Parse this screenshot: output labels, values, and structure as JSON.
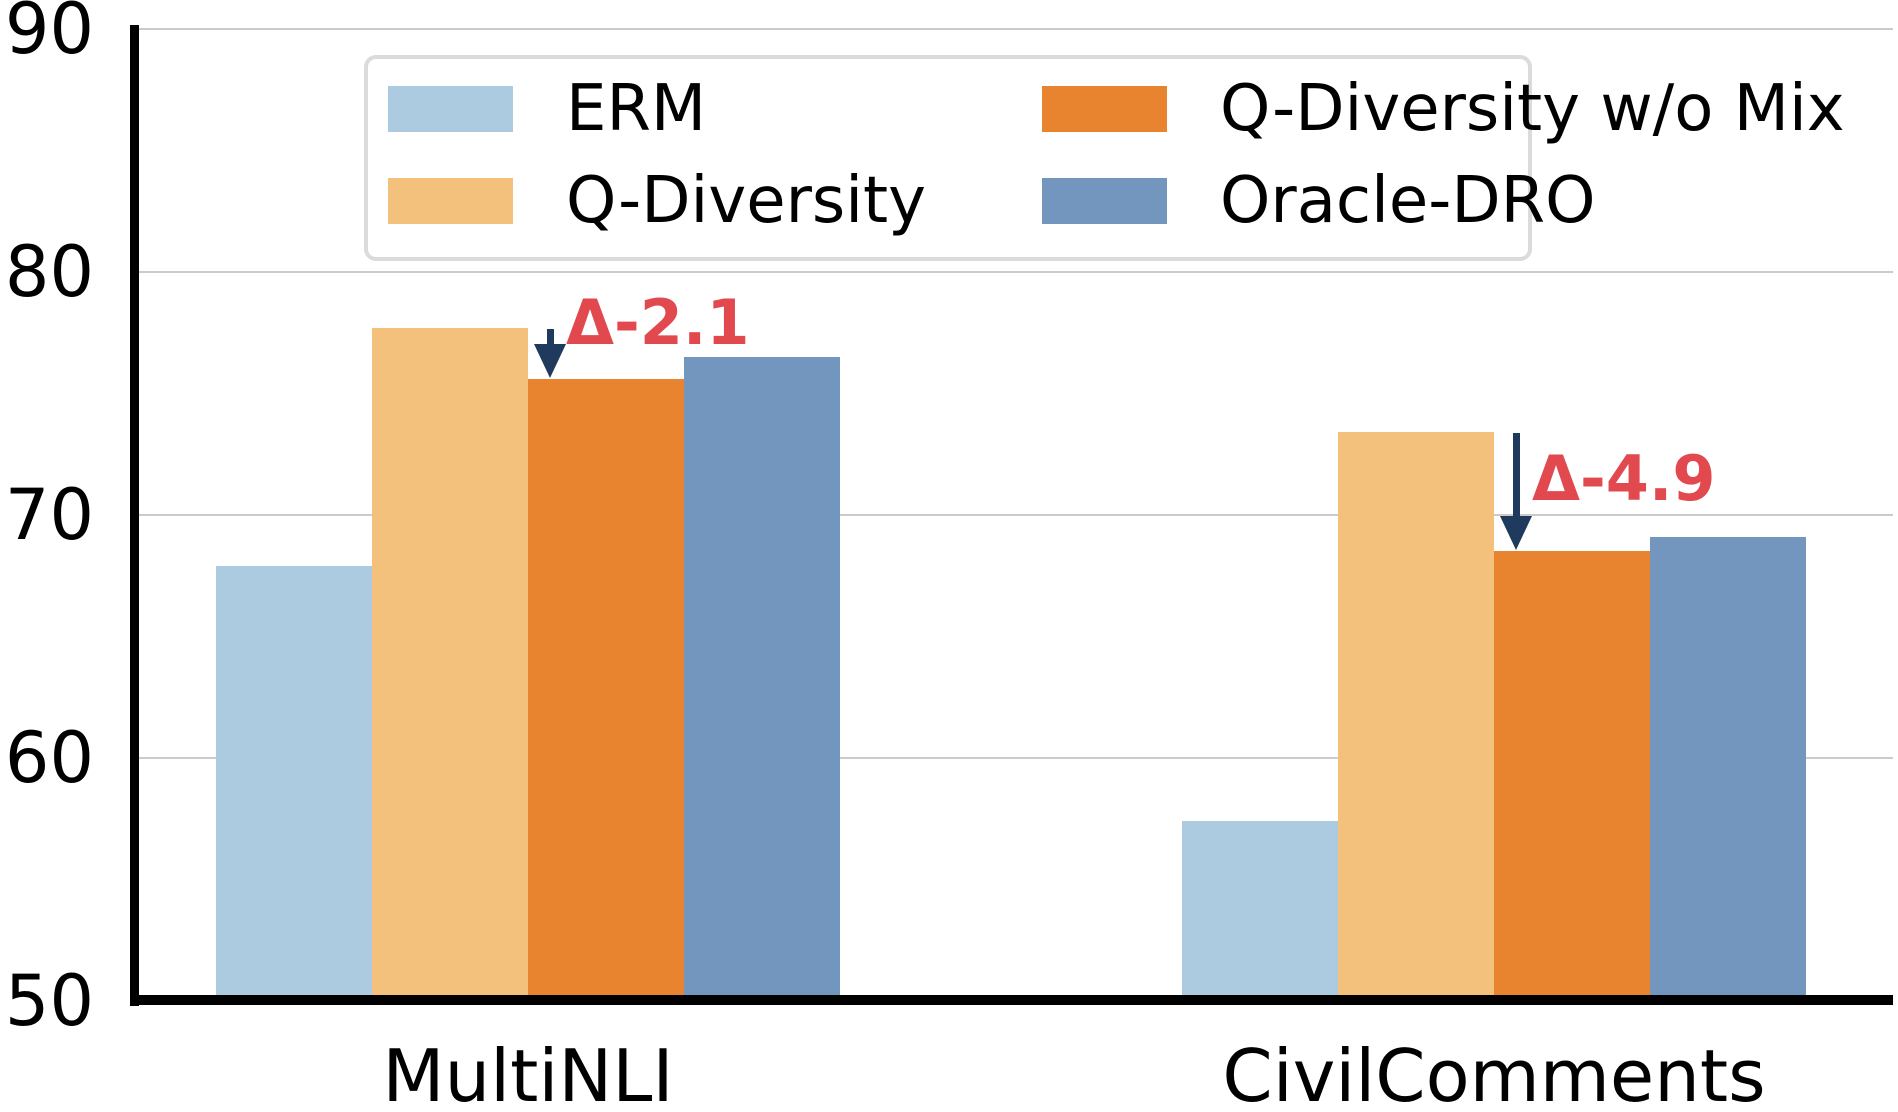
{
  "figure": {
    "kind": "grouped-bar-chart",
    "background": "#ffffff"
  },
  "chart_data": {
    "type": "bar",
    "title": "",
    "xlabel": "",
    "ylabel": "",
    "categories": [
      "MultiNLI",
      "CivilComments"
    ],
    "series": [
      {
        "name": "ERM",
        "color": "#ACCBE1",
        "values": [
          67.9,
          57.4
        ]
      },
      {
        "name": "Q-Diversity",
        "color": "#F4C17D",
        "values": [
          77.7,
          73.4
        ]
      },
      {
        "name": "Q-Diversity w/o Mix",
        "color": "#E8832F",
        "values": [
          75.6,
          68.5
        ]
      },
      {
        "name": "Oracle-DRO",
        "color": "#7296BE",
        "values": [
          76.5,
          69.1
        ]
      }
    ],
    "ylim": [
      50,
      90
    ],
    "yticks": [
      50,
      60,
      70,
      80,
      90
    ],
    "grid": true,
    "legend_position": "upper center",
    "legend_columns": 2,
    "annotations": [
      {
        "category": "MultiNLI",
        "text": "Δ-2.1",
        "from_series": "Q-Diversity",
        "to_series": "Q-Diversity w/o Mix",
        "label_y_value": 77.9
      },
      {
        "category": "CivilComments",
        "text": "Δ-4.9",
        "from_series": "Q-Diversity",
        "to_series": "Q-Diversity w/o Mix",
        "label_y_value": 71.5
      }
    ],
    "colors": {
      "annotation_text": "#E2494F",
      "arrow": "#1F3A5C",
      "gridline": "#CBCBCB",
      "spine": "#000000",
      "legend_border": "#DBDBDB",
      "tick_label": "#000000"
    }
  }
}
